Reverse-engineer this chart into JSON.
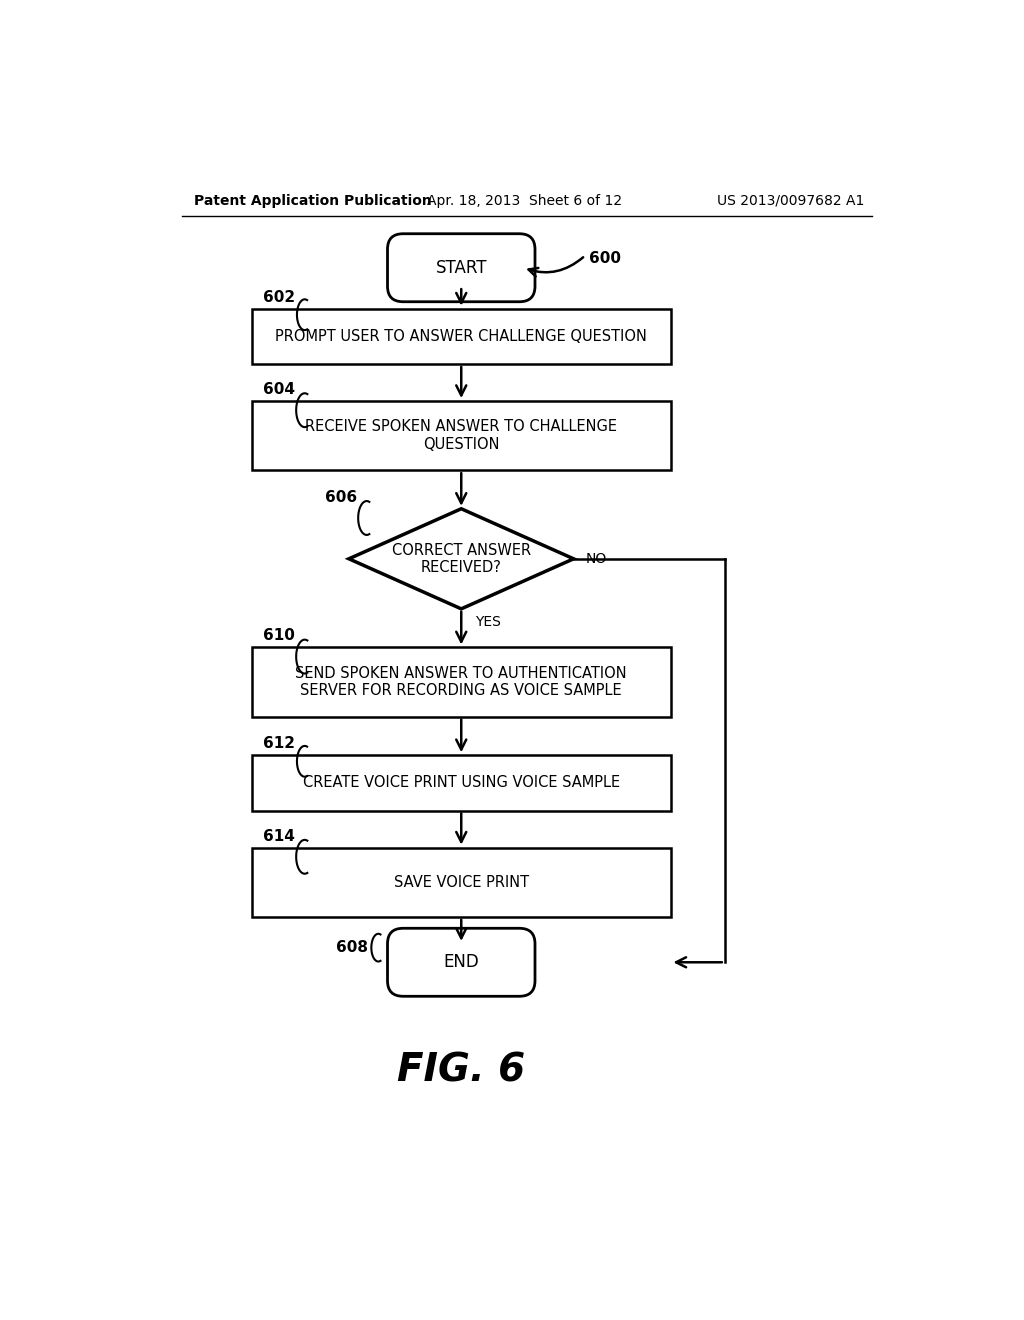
{
  "page_width": 10.24,
  "page_height": 13.2,
  "bg_color": "#ffffff",
  "header_left": "Patent Application Publication",
  "header_center": "Apr. 18, 2013  Sheet 6 of 12",
  "header_right": "US 2013/0097682 A1",
  "figure_label": "FIG. 6",
  "start_label": "START",
  "end_label": "END",
  "flow_ref": "600",
  "box_602_text": "PROMPT USER TO ANSWER CHALLENGE QUESTION",
  "box_604_text": "RECEIVE SPOKEN ANSWER TO CHALLENGE\nQUESTION",
  "box_606_text": "CORRECT ANSWER\nRECEIVED?",
  "box_610_text": "SEND SPOKEN ANSWER TO AUTHENTICATION\nSERVER FOR RECORDING AS VOICE SAMPLE",
  "box_612_text": "CREATE VOICE PRINT USING VOICE SAMPLE",
  "box_614_text": "SAVE VOICE PRINT",
  "no_label": "NO",
  "yes_label": "YES",
  "label_602": "602",
  "label_604": "604",
  "label_606": "606",
  "label_608": "608",
  "label_610": "610",
  "label_612": "612",
  "label_614": "614"
}
